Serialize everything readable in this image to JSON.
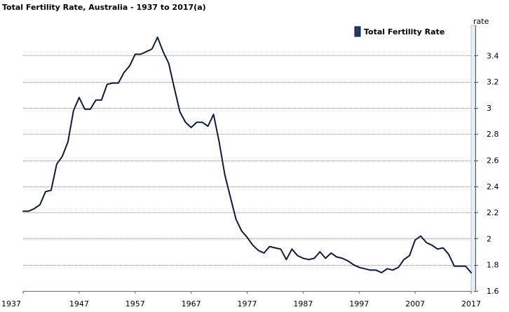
{
  "chart_data": {
    "type": "line",
    "title": "Total Fertility Rate, Australia - 1937 to 2017(a)",
    "ylabel": "rate",
    "xlim": [
      1937,
      2017
    ],
    "ylim": [
      1.6,
      3.6
    ],
    "y_ticks": [
      "1.6",
      "1.8",
      "2",
      "2.2",
      "2.4",
      "2.6",
      "2.8",
      "3",
      "3.2",
      "3.4"
    ],
    "x_ticks": [
      "1937",
      "1947",
      "1957",
      "1967",
      "1977",
      "1987",
      "1997",
      "2007",
      "2017"
    ],
    "grid": true,
    "y_axis_side": "right",
    "legend_position": "top-right",
    "series": [
      {
        "name": "Total Fertility Rate",
        "color": "#0d1b3e",
        "x": [
          1937,
          1938,
          1939,
          1940,
          1941,
          1942,
          1943,
          1944,
          1945,
          1946,
          1947,
          1948,
          1949,
          1950,
          1951,
          1952,
          1953,
          1954,
          1955,
          1956,
          1957,
          1958,
          1959,
          1960,
          1961,
          1962,
          1963,
          1964,
          1965,
          1966,
          1967,
          1968,
          1969,
          1970,
          1971,
          1972,
          1973,
          1974,
          1975,
          1976,
          1977,
          1978,
          1979,
          1980,
          1981,
          1982,
          1983,
          1984,
          1985,
          1986,
          1987,
          1988,
          1989,
          1990,
          1991,
          1992,
          1993,
          1994,
          1995,
          1996,
          1997,
          1998,
          1999,
          2000,
          2001,
          2002,
          2003,
          2004,
          2005,
          2006,
          2007,
          2008,
          2009,
          2010,
          2011,
          2012,
          2013,
          2014,
          2015,
          2016,
          2017
        ],
        "values": [
          2.21,
          2.21,
          2.23,
          2.26,
          2.36,
          2.37,
          2.57,
          2.63,
          2.74,
          2.98,
          3.08,
          2.99,
          2.99,
          3.06,
          3.06,
          3.18,
          3.19,
          3.19,
          3.27,
          3.32,
          3.41,
          3.41,
          3.43,
          3.45,
          3.54,
          3.43,
          3.34,
          3.15,
          2.97,
          2.89,
          2.85,
          2.89,
          2.89,
          2.86,
          2.95,
          2.74,
          2.49,
          2.32,
          2.15,
          2.06,
          2.01,
          1.95,
          1.91,
          1.89,
          1.94,
          1.93,
          1.92,
          1.84,
          1.92,
          1.87,
          1.85,
          1.84,
          1.85,
          1.9,
          1.85,
          1.89,
          1.86,
          1.85,
          1.83,
          1.8,
          1.78,
          1.77,
          1.76,
          1.76,
          1.74,
          1.77,
          1.76,
          1.78,
          1.84,
          1.87,
          1.99,
          2.02,
          1.97,
          1.95,
          1.92,
          1.93,
          1.88,
          1.79,
          1.79,
          1.79,
          1.74
        ]
      }
    ]
  }
}
